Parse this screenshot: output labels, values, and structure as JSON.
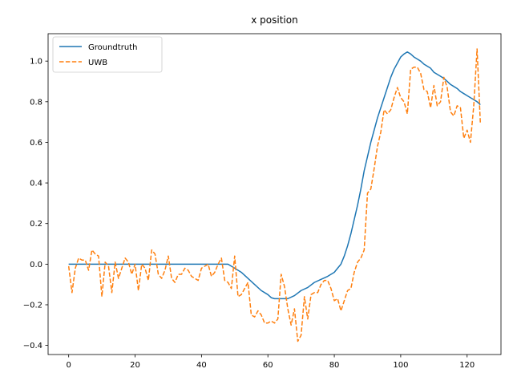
{
  "chart_data": {
    "type": "line",
    "title": "x position",
    "xlabel": "",
    "ylabel": "",
    "xlim": [
      -6.2,
      130.2
    ],
    "ylim": [
      -0.445,
      1.135
    ],
    "xticks": [
      0,
      20,
      40,
      60,
      80,
      100,
      120
    ],
    "yticks": [
      -0.4,
      -0.2,
      0.0,
      0.2,
      0.4,
      0.6,
      0.8,
      1.0
    ],
    "ytick_labels": [
      "−0.4",
      "−0.2",
      "0.0",
      "0.2",
      "0.4",
      "0.6",
      "0.8",
      "1.0"
    ],
    "grid": false,
    "legend_position": "upper-left",
    "series": [
      {
        "name": "Groundtruth",
        "color": "#1f77b4",
        "linestyle": "solid",
        "x": [
          0,
          5,
          10,
          15,
          20,
          25,
          30,
          35,
          40,
          45,
          48,
          50,
          52,
          54,
          56,
          58,
          60,
          61,
          62,
          64,
          66,
          68,
          70,
          72,
          74,
          76,
          78,
          80,
          81,
          82,
          83,
          84,
          85,
          86,
          87,
          88,
          89,
          90,
          91,
          92,
          93,
          94,
          95,
          96,
          97,
          98,
          99,
          100,
          101,
          102,
          103,
          104,
          105,
          106,
          107,
          108,
          109,
          110,
          111,
          112,
          113,
          114,
          115,
          116,
          117,
          118,
          119,
          120,
          121,
          122,
          123,
          124
        ],
        "y": [
          0.0,
          0.0,
          0.0,
          0.0,
          0.0,
          0.0,
          0.0,
          0.0,
          0.0,
          0.0,
          0.0,
          -0.02,
          -0.04,
          -0.07,
          -0.1,
          -0.13,
          -0.15,
          -0.165,
          -0.17,
          -0.17,
          -0.17,
          -0.155,
          -0.13,
          -0.115,
          -0.09,
          -0.075,
          -0.06,
          -0.04,
          -0.02,
          0.0,
          0.04,
          0.09,
          0.15,
          0.22,
          0.29,
          0.37,
          0.46,
          0.53,
          0.6,
          0.66,
          0.72,
          0.77,
          0.82,
          0.87,
          0.92,
          0.96,
          0.99,
          1.02,
          1.035,
          1.045,
          1.035,
          1.02,
          1.01,
          1.0,
          0.985,
          0.975,
          0.965,
          0.945,
          0.935,
          0.925,
          0.915,
          0.9,
          0.885,
          0.875,
          0.865,
          0.85,
          0.84,
          0.83,
          0.82,
          0.81,
          0.8,
          0.785
        ]
      },
      {
        "name": "UWB",
        "color": "#ff7f0e",
        "linestyle": "dashed",
        "x": [
          0,
          1,
          2,
          3,
          4,
          5,
          6,
          7,
          8,
          9,
          10,
          11,
          12,
          13,
          14,
          15,
          16,
          17,
          18,
          19,
          20,
          21,
          22,
          23,
          24,
          25,
          26,
          27,
          28,
          29,
          30,
          31,
          32,
          33,
          34,
          35,
          36,
          37,
          38,
          39,
          40,
          41,
          42,
          43,
          44,
          45,
          46,
          47,
          48,
          49,
          50,
          51,
          52,
          53,
          54,
          55,
          56,
          57,
          58,
          59,
          60,
          61,
          62,
          63,
          64,
          65,
          66,
          67,
          68,
          69,
          70,
          71,
          72,
          73,
          74,
          75,
          76,
          77,
          78,
          79,
          80,
          81,
          82,
          83,
          84,
          85,
          86,
          87,
          88,
          89,
          90,
          91,
          92,
          93,
          94,
          95,
          96,
          97,
          98,
          99,
          100,
          101,
          102,
          103,
          104,
          105,
          106,
          107,
          108,
          109,
          110,
          111,
          112,
          113,
          114,
          115,
          116,
          117,
          118,
          119,
          120,
          121,
          122,
          123,
          124
        ],
        "y": [
          -0.01,
          -0.14,
          -0.02,
          0.03,
          0.02,
          0.02,
          -0.03,
          0.07,
          0.05,
          0.04,
          -0.16,
          0.01,
          -0.01,
          -0.14,
          0.01,
          -0.07,
          -0.02,
          0.03,
          0.01,
          -0.05,
          0.0,
          -0.13,
          0.0,
          -0.02,
          -0.08,
          0.07,
          0.05,
          -0.05,
          -0.07,
          -0.03,
          0.04,
          -0.07,
          -0.09,
          -0.05,
          -0.05,
          -0.02,
          -0.03,
          -0.06,
          -0.07,
          -0.08,
          -0.02,
          -0.01,
          0.0,
          -0.06,
          -0.04,
          0.0,
          0.03,
          -0.08,
          -0.09,
          -0.12,
          0.04,
          -0.16,
          -0.15,
          -0.12,
          -0.09,
          -0.25,
          -0.26,
          -0.23,
          -0.25,
          -0.29,
          -0.29,
          -0.28,
          -0.29,
          -0.27,
          -0.05,
          -0.11,
          -0.22,
          -0.3,
          -0.22,
          -0.38,
          -0.35,
          -0.16,
          -0.27,
          -0.15,
          -0.14,
          -0.14,
          -0.1,
          -0.08,
          -0.08,
          -0.12,
          -0.18,
          -0.17,
          -0.23,
          -0.18,
          -0.13,
          -0.12,
          -0.04,
          0.01,
          0.03,
          0.07,
          0.35,
          0.37,
          0.47,
          0.58,
          0.65,
          0.76,
          0.74,
          0.76,
          0.82,
          0.87,
          0.82,
          0.8,
          0.74,
          0.96,
          0.97,
          0.97,
          0.94,
          0.86,
          0.85,
          0.77,
          0.88,
          0.78,
          0.8,
          0.92,
          0.87,
          0.75,
          0.73,
          0.78,
          0.77,
          0.62,
          0.66,
          0.6,
          0.78,
          1.06,
          0.69
        ]
      }
    ]
  }
}
